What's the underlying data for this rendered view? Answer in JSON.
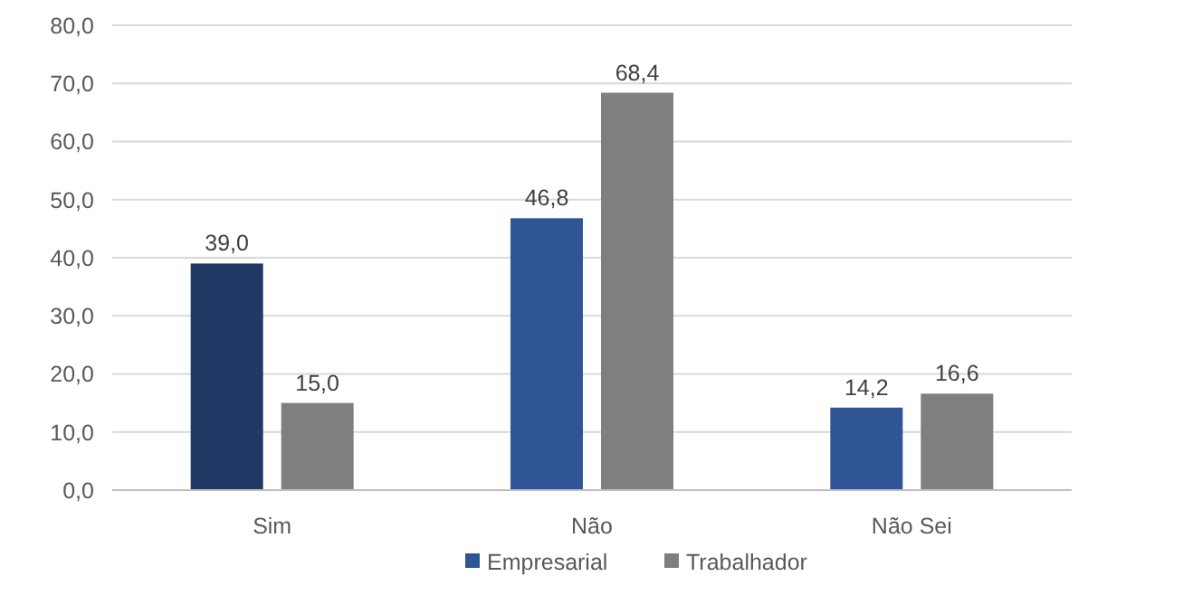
{
  "chart_data": {
    "type": "bar",
    "categories": [
      "Sim",
      "Não",
      "Não Sei"
    ],
    "series": [
      {
        "name": "Empresarial",
        "color": "#2f5597",
        "colors": [
          "#1f3864",
          "#2f5597",
          "#2f5597"
        ],
        "values": [
          39.0,
          46.8,
          14.2
        ],
        "value_labels": [
          "39,0",
          "46,8",
          "14,2"
        ]
      },
      {
        "name": "Trabalhador",
        "color": "#7f7f7f",
        "values": [
          15.0,
          68.4,
          16.6
        ],
        "value_labels": [
          "15,0",
          "68,4",
          "16,6"
        ]
      }
    ],
    "ylim": [
      0,
      80
    ],
    "yticks": [
      {
        "value": 0,
        "label": "0,0"
      },
      {
        "value": 10,
        "label": "10,0"
      },
      {
        "value": 20,
        "label": "20,0"
      },
      {
        "value": 30,
        "label": "30,0"
      },
      {
        "value": 40,
        "label": "40,0"
      },
      {
        "value": 50,
        "label": "50,0"
      },
      {
        "value": 60,
        "label": "60,0"
      },
      {
        "value": 70,
        "label": "70,0"
      },
      {
        "value": 80,
        "label": "80,0"
      }
    ],
    "grid": "y",
    "legend": "bottom"
  }
}
